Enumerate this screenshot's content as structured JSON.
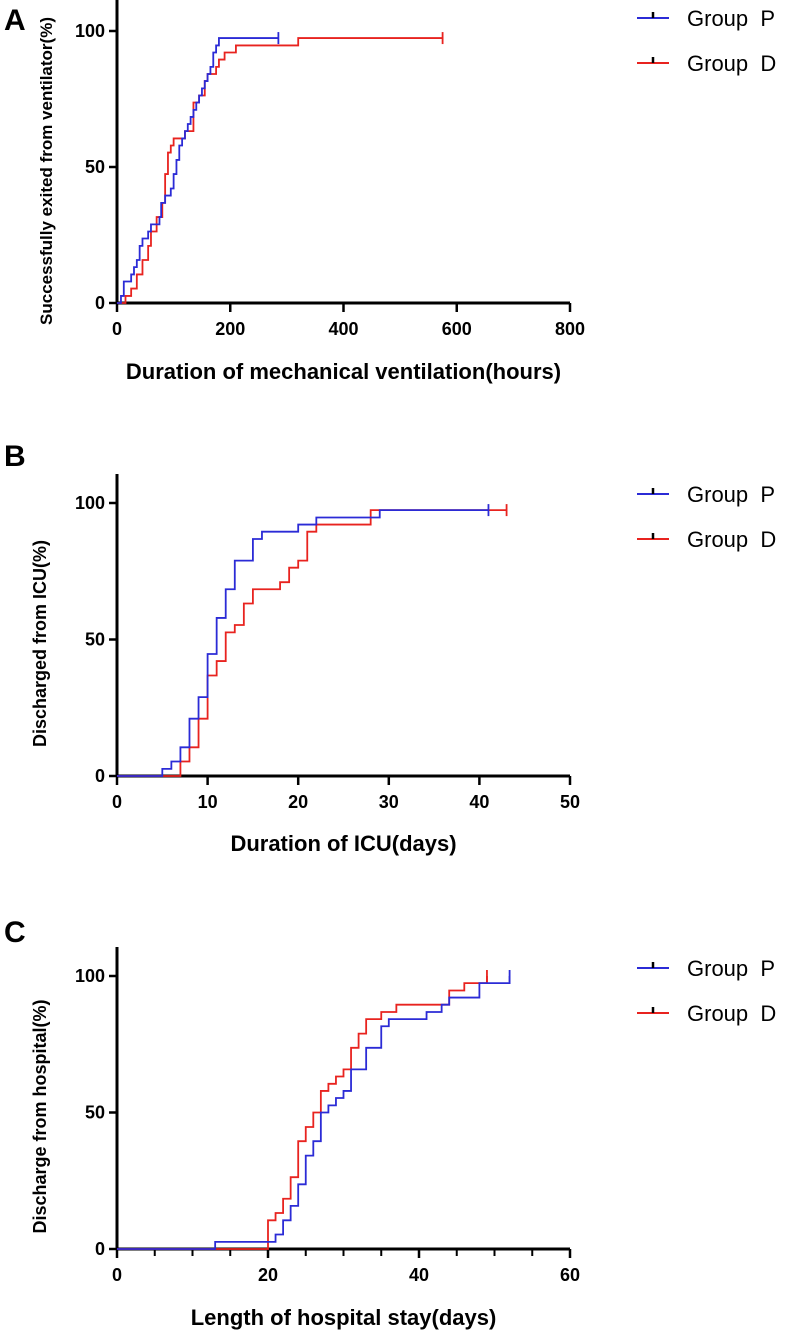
{
  "colors": {
    "group_p": "#2b2bd6",
    "group_d": "#e8231f",
    "axis": "#000000"
  },
  "chart_data": [
    {
      "type": "line",
      "panel": "A",
      "xlabel": "Duration of mechanical ventilation(hours)",
      "ylabel": "Successfully exited from ventilator(%)",
      "xlim": [
        0,
        800
      ],
      "ylim": [
        0,
        100
      ],
      "xticks": [
        "0",
        "200",
        "400",
        "600",
        "800"
      ],
      "yticks": [
        "0",
        "50",
        "100"
      ],
      "legend": "top-right",
      "series": [
        {
          "name": "Group P",
          "color": "#2b2bd6",
          "points": [
            [
              0,
              0
            ],
            [
              7,
              2.6
            ],
            [
              12,
              7.9
            ],
            [
              25,
              10.5
            ],
            [
              30,
              13.2
            ],
            [
              35,
              15.8
            ],
            [
              40,
              21
            ],
            [
              45,
              23.7
            ],
            [
              55,
              26.3
            ],
            [
              60,
              28.9
            ],
            [
              75,
              31.6
            ],
            [
              78,
              36.8
            ],
            [
              85,
              39.5
            ],
            [
              95,
              42.1
            ],
            [
              100,
              47.4
            ],
            [
              105,
              52.6
            ],
            [
              110,
              57.9
            ],
            [
              115,
              60.5
            ],
            [
              120,
              63.2
            ],
            [
              125,
              65.8
            ],
            [
              130,
              68.4
            ],
            [
              135,
              71
            ],
            [
              140,
              73.7
            ],
            [
              145,
              76.3
            ],
            [
              150,
              78.9
            ],
            [
              155,
              81.6
            ],
            [
              160,
              84.2
            ],
            [
              165,
              86.8
            ],
            [
              170,
              92.1
            ],
            [
              175,
              94.7
            ],
            [
              180,
              97.4
            ],
            [
              285,
              97.4
            ]
          ],
          "censor": [
            285
          ]
        },
        {
          "name": "Group D",
          "color": "#e8231f",
          "points": [
            [
              0,
              0
            ],
            [
              15,
              2.6
            ],
            [
              25,
              5.3
            ],
            [
              35,
              10.5
            ],
            [
              45,
              15.8
            ],
            [
              55,
              21
            ],
            [
              60,
              26.3
            ],
            [
              70,
              31.6
            ],
            [
              80,
              36.8
            ],
            [
              85,
              47.4
            ],
            [
              90,
              55.3
            ],
            [
              95,
              57.9
            ],
            [
              100,
              60.5
            ],
            [
              120,
              63.2
            ],
            [
              135,
              73.7
            ],
            [
              145,
              76.3
            ],
            [
              155,
              81.6
            ],
            [
              160,
              84.2
            ],
            [
              175,
              86.8
            ],
            [
              180,
              89.5
            ],
            [
              190,
              92.1
            ],
            [
              210,
              94.7
            ],
            [
              320,
              97.4
            ],
            [
              575,
              97.4
            ]
          ],
          "censor": [
            575
          ]
        }
      ]
    },
    {
      "type": "line",
      "panel": "B",
      "xlabel": "Duration of ICU(days)",
      "ylabel": "Discharged from ICU(%)",
      "xlim": [
        0,
        50
      ],
      "ylim": [
        0,
        100
      ],
      "xticks": [
        "0",
        "10",
        "20",
        "30",
        "40",
        "50"
      ],
      "yticks": [
        "0",
        "50",
        "100"
      ],
      "legend": "top-right",
      "series": [
        {
          "name": "Group P",
          "color": "#2b2bd6",
          "points": [
            [
              0,
              0
            ],
            [
              5,
              2.6
            ],
            [
              6,
              5.3
            ],
            [
              7,
              10.5
            ],
            [
              8,
              21
            ],
            [
              9,
              28.9
            ],
            [
              10,
              44.7
            ],
            [
              11,
              57.9
            ],
            [
              12,
              68.4
            ],
            [
              13,
              78.9
            ],
            [
              15,
              86.8
            ],
            [
              16,
              89.5
            ],
            [
              20,
              92.1
            ],
            [
              22,
              94.7
            ],
            [
              29,
              97.4
            ],
            [
              41,
              97.4
            ]
          ],
          "censor": [
            41
          ]
        },
        {
          "name": "Group D",
          "color": "#e8231f",
          "points": [
            [
              0,
              0
            ],
            [
              7,
              5.3
            ],
            [
              8,
              10.5
            ],
            [
              9,
              21
            ],
            [
              10,
              36.8
            ],
            [
              11,
              42.1
            ],
            [
              12,
              52.6
            ],
            [
              13,
              55.3
            ],
            [
              14,
              63.2
            ],
            [
              15,
              68.4
            ],
            [
              18,
              71
            ],
            [
              19,
              76.3
            ],
            [
              20,
              78.9
            ],
            [
              21,
              89.5
            ],
            [
              22,
              92.1
            ],
            [
              28,
              97.4
            ],
            [
              43,
              97.4
            ]
          ],
          "censor": [
            43
          ]
        }
      ]
    },
    {
      "type": "line",
      "panel": "C",
      "xlabel": "Length of hospital stay(days)",
      "ylabel": "Discharge from hospital(%)",
      "xlim": [
        0,
        60
      ],
      "ylim": [
        0,
        100
      ],
      "xticks": [
        "0",
        "20",
        "40",
        "60"
      ],
      "yticks": [
        "0",
        "50",
        "100"
      ],
      "legend": "top-right",
      "series": [
        {
          "name": "Group P",
          "color": "#2b2bd6",
          "points": [
            [
              0,
              0
            ],
            [
              13,
              2.6
            ],
            [
              21,
              5.3
            ],
            [
              22,
              10.5
            ],
            [
              23,
              15.8
            ],
            [
              24,
              23.7
            ],
            [
              25,
              34.2
            ],
            [
              26,
              39.5
            ],
            [
              27,
              50
            ],
            [
              28,
              52.6
            ],
            [
              29,
              55.3
            ],
            [
              30,
              57.9
            ],
            [
              31,
              65.8
            ],
            [
              33,
              73.7
            ],
            [
              35,
              81.6
            ],
            [
              36,
              84.2
            ],
            [
              41,
              86.8
            ],
            [
              43,
              89.5
            ],
            [
              44,
              92.1
            ],
            [
              48,
              97.4
            ],
            [
              52,
              100
            ]
          ],
          "censor": [
            52
          ]
        },
        {
          "name": "Group D",
          "color": "#e8231f",
          "points": [
            [
              0,
              0
            ],
            [
              20,
              10.5
            ],
            [
              21,
              13.2
            ],
            [
              22,
              18.4
            ],
            [
              23,
              26.3
            ],
            [
              24,
              39.5
            ],
            [
              25,
              44.7
            ],
            [
              26,
              50
            ],
            [
              27,
              57.9
            ],
            [
              28,
              60.5
            ],
            [
              29,
              63.2
            ],
            [
              30,
              65.8
            ],
            [
              31,
              73.7
            ],
            [
              32,
              78.9
            ],
            [
              33,
              84.2
            ],
            [
              35,
              86.8
            ],
            [
              37,
              89.5
            ],
            [
              44,
              94.7
            ],
            [
              46,
              97.4
            ],
            [
              49,
              100
            ]
          ],
          "censor": [
            49
          ]
        }
      ]
    }
  ]
}
